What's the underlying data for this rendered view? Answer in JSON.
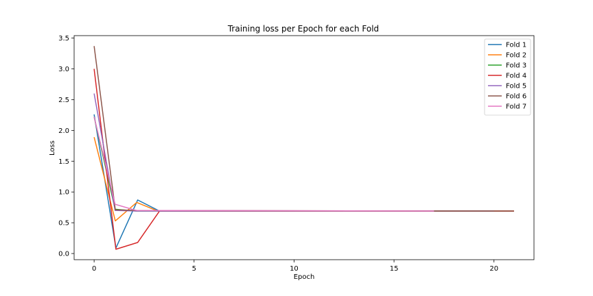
{
  "chart_data": {
    "type": "line",
    "title": "Training loss per Epoch for each Fold",
    "xlabel": "Epoch",
    "ylabel": "Loss",
    "xlim": [
      -1.0,
      22.0
    ],
    "ylim": [
      -0.1,
      3.54
    ],
    "xticks": [
      0,
      5,
      10,
      15,
      20
    ],
    "yticks": [
      0.0,
      0.5,
      1.0,
      1.5,
      2.0,
      2.5,
      3.0,
      3.5
    ],
    "xtick_labels": [
      "0",
      "5",
      "10",
      "15",
      "20"
    ],
    "ytick_labels": [
      "0.0",
      "0.5",
      "1.0",
      "1.5",
      "2.0",
      "2.5",
      "3.0",
      "3.5"
    ],
    "grid": false,
    "legend_position": "top-right",
    "series": [
      {
        "name": "Fold 1",
        "color": "#1f77b4",
        "x": [
          0,
          1.09,
          2.18,
          3.27,
          21
        ],
        "y": [
          2.26,
          0.09,
          0.87,
          0.69,
          0.69
        ]
      },
      {
        "name": "Fold 2",
        "color": "#ff7f0e",
        "x": [
          0,
          1.06,
          2.13,
          3.19,
          21
        ],
        "y": [
          1.89,
          0.53,
          0.83,
          0.69,
          0.69
        ]
      },
      {
        "name": "Fold 3",
        "color": "#2ca02c",
        "x": [
          0,
          1.05,
          2.1,
          20
        ],
        "y": [
          2.22,
          0.72,
          0.69,
          0.69
        ]
      },
      {
        "name": "Fold 4",
        "color": "#d62728",
        "x": [
          0,
          1.09,
          2.18,
          3.27,
          21
        ],
        "y": [
          3.0,
          0.07,
          0.18,
          0.69,
          0.69
        ]
      },
      {
        "name": "Fold 5",
        "color": "#9467bd",
        "x": [
          0,
          1.05,
          2.1,
          20
        ],
        "y": [
          2.6,
          0.7,
          0.69,
          0.69
        ]
      },
      {
        "name": "Fold 6",
        "color": "#8c564b",
        "x": [
          0,
          1.06,
          2.13,
          17,
          21
        ],
        "y": [
          3.37,
          0.71,
          0.7,
          0.69,
          0.69
        ]
      },
      {
        "name": "Fold 7",
        "color": "#e377c2",
        "x": [
          0,
          1.05,
          2.1,
          17
        ],
        "y": [
          2.22,
          0.8,
          0.7,
          0.69
        ]
      }
    ]
  }
}
